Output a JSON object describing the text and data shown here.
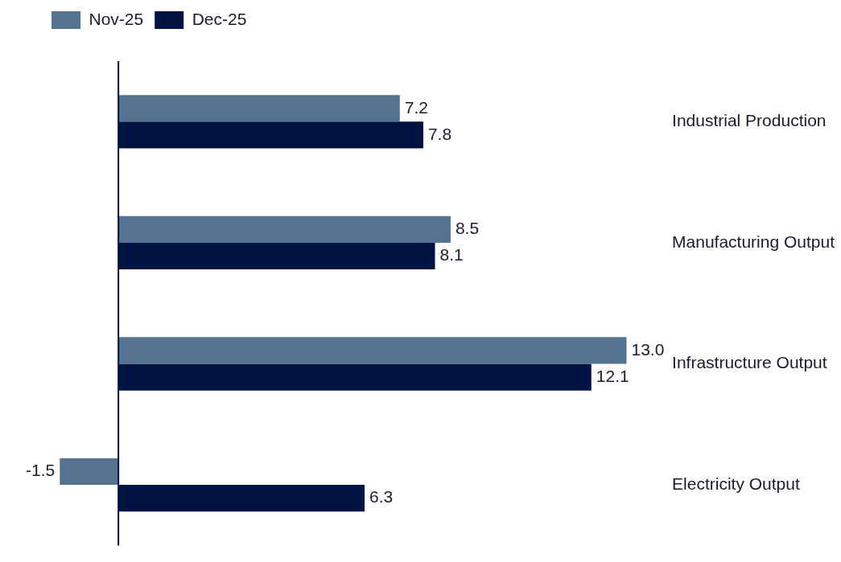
{
  "chart_data": {
    "type": "bar",
    "orientation": "horizontal",
    "categories": [
      "Industrial Production",
      "Manufacturing Output",
      "Infrastructure Output",
      "Electricity Output"
    ],
    "series": [
      {
        "name": "Nov-25",
        "color": "#557390",
        "values": [
          7.2,
          8.5,
          13.0,
          -1.5
        ],
        "value_labels": [
          "7.2",
          "8.5",
          "13.0",
          "-1.5"
        ]
      },
      {
        "name": "Dec-25",
        "color": "#001342",
        "values": [
          7.8,
          8.1,
          12.1,
          6.3
        ],
        "value_labels": [
          "7.8",
          "8.1",
          "12.1",
          "6.3"
        ]
      }
    ],
    "tick_labels": "y",
    "legend": "top left"
  }
}
